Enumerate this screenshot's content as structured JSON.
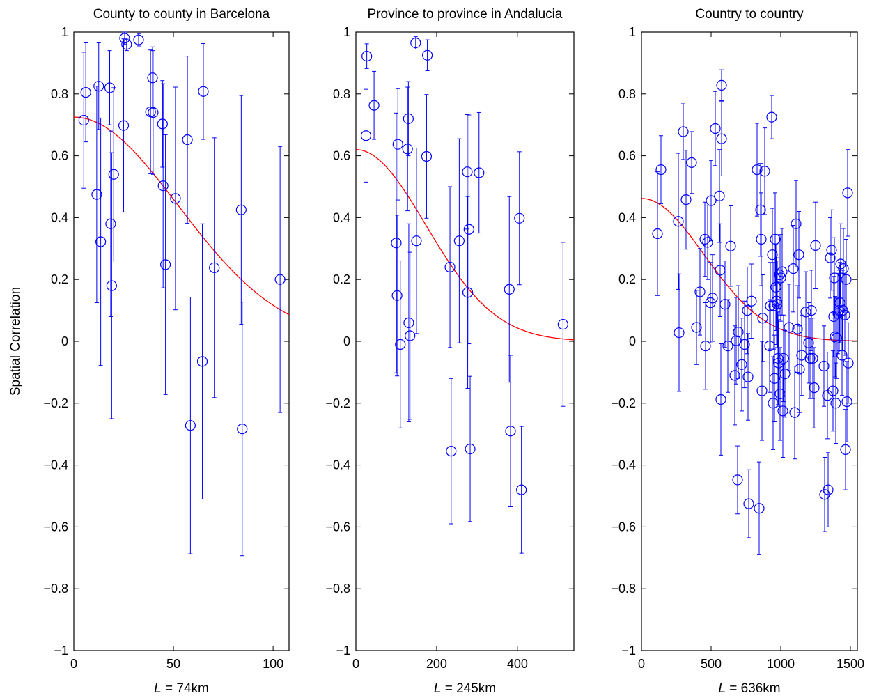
{
  "figure": {
    "ylabel": "Spatial Correlation",
    "marker_color": "#0000ff",
    "fit_color": "#ff0000"
  },
  "chart_data": [
    {
      "type": "scatter",
      "title": "County to county in Barcelona",
      "xlabel_italic": "L",
      "xlabel_rest": " = 74km",
      "xlim": [
        0,
        108
      ],
      "ylim": [
        -1,
        1
      ],
      "xticks": [
        0,
        50,
        100
      ],
      "yticks": [
        -1,
        -0.8,
        -0.6,
        -0.4,
        -0.2,
        0,
        0.2,
        0.4,
        0.6,
        0.8,
        1
      ],
      "fit": {
        "amplitude": 0.725,
        "length_scale": 74
      },
      "points": [
        {
          "x": 5,
          "y": 0.715,
          "err": 0.22
        },
        {
          "x": 6,
          "y": 0.805,
          "err": 0.16
        },
        {
          "x": 11.5,
          "y": 0.475,
          "err": 0.35
        },
        {
          "x": 12.5,
          "y": 0.825,
          "err": 0.14
        },
        {
          "x": 13.5,
          "y": 0.322,
          "err": 0.4
        },
        {
          "x": 18,
          "y": 0.82,
          "err": 0.12
        },
        {
          "x": 18.5,
          "y": 0.38,
          "err": 0.3
        },
        {
          "x": 19,
          "y": 0.18,
          "err": 0.43
        },
        {
          "x": 20,
          "y": 0.54,
          "err": 0.28
        },
        {
          "x": 25,
          "y": 0.698,
          "err": 0.28
        },
        {
          "x": 25.5,
          "y": 0.98,
          "err": 0.02
        },
        {
          "x": 26.5,
          "y": 0.96,
          "err": 0.02
        },
        {
          "x": 32.5,
          "y": 0.975,
          "err": 0.02
        },
        {
          "x": 38.5,
          "y": 0.742,
          "err": 0.2
        },
        {
          "x": 39.5,
          "y": 0.852,
          "err": 0.1
        },
        {
          "x": 39.8,
          "y": 0.74,
          "err": 0.2
        },
        {
          "x": 44.5,
          "y": 0.703,
          "err": 0.14
        },
        {
          "x": 44.8,
          "y": 0.503,
          "err": 0.33
        },
        {
          "x": 46,
          "y": 0.248,
          "err": 0.42
        },
        {
          "x": 51,
          "y": 0.462,
          "err": 0.36
        },
        {
          "x": 57,
          "y": 0.652,
          "err": 0.27
        },
        {
          "x": 58.5,
          "y": -0.272,
          "err": 0.415
        },
        {
          "x": 64.5,
          "y": -0.065,
          "err": 0.445
        },
        {
          "x": 65,
          "y": 0.808,
          "err": 0.155
        },
        {
          "x": 70.5,
          "y": 0.238,
          "err": 0.42
        },
        {
          "x": 84,
          "y": 0.425,
          "err": 0.37
        },
        {
          "x": 84.5,
          "y": -0.283,
          "err": 0.41
        },
        {
          "x": 103.5,
          "y": 0.2,
          "err": 0.43
        }
      ]
    },
    {
      "type": "scatter",
      "title": "Province to province in Andalucia",
      "xlabel_italic": "L",
      "xlabel_rest": " = 245km",
      "xlim": [
        0,
        540
      ],
      "ylim": [
        -1,
        1
      ],
      "xticks": [
        0,
        200,
        400
      ],
      "yticks": [
        -1,
        -0.8,
        -0.6,
        -0.4,
        -0.2,
        0,
        0.2,
        0.4,
        0.6,
        0.8,
        1
      ],
      "fit": {
        "amplitude": 0.62,
        "length_scale": 245
      },
      "points": [
        {
          "x": 25,
          "y": 0.665,
          "err": 0.15
        },
        {
          "x": 27,
          "y": 0.922,
          "err": 0.04
        },
        {
          "x": 45,
          "y": 0.763,
          "err": 0.11
        },
        {
          "x": 100,
          "y": 0.318,
          "err": 0.42
        },
        {
          "x": 102,
          "y": 0.148,
          "err": 0.26
        },
        {
          "x": 104,
          "y": 0.637,
          "err": 0.18
        },
        {
          "x": 110,
          "y": -0.01,
          "err": 0.27
        },
        {
          "x": 128,
          "y": 0.622,
          "err": 0.2
        },
        {
          "x": 130,
          "y": 0.72,
          "err": 0.12
        },
        {
          "x": 131,
          "y": 0.06,
          "err": 0.32
        },
        {
          "x": 134,
          "y": 0.018,
          "err": 0.27
        },
        {
          "x": 148,
          "y": 0.965,
          "err": 0.02
        },
        {
          "x": 150,
          "y": 0.325,
          "err": 0.3
        },
        {
          "x": 175,
          "y": 0.598,
          "err": 0.2
        },
        {
          "x": 177,
          "y": 0.925,
          "err": 0.05
        },
        {
          "x": 233,
          "y": 0.24,
          "err": 0.26
        },
        {
          "x": 236,
          "y": -0.355,
          "err": 0.235
        },
        {
          "x": 256,
          "y": 0.325,
          "err": 0.33
        },
        {
          "x": 276,
          "y": 0.548,
          "err": 0.185
        },
        {
          "x": 277,
          "y": 0.158,
          "err": 0.31
        },
        {
          "x": 280,
          "y": 0.362,
          "err": 0.37
        },
        {
          "x": 283,
          "y": -0.348,
          "err": 0.235
        },
        {
          "x": 305,
          "y": 0.545,
          "err": 0.195
        },
        {
          "x": 380,
          "y": 0.168,
          "err": 0.3
        },
        {
          "x": 383,
          "y": -0.29,
          "err": 0.245
        },
        {
          "x": 405,
          "y": 0.398,
          "err": 0.215
        },
        {
          "x": 410,
          "y": -0.48,
          "err": 0.205
        },
        {
          "x": 513,
          "y": 0.055,
          "err": 0.265
        }
      ]
    },
    {
      "type": "scatter",
      "title": "Country to country",
      "xlabel_italic": "L",
      "xlabel_rest": " = 636km",
      "xlim": [
        0,
        1550
      ],
      "ylim": [
        -1,
        1
      ],
      "xticks": [
        0,
        500,
        1000,
        1500
      ],
      "yticks": [
        -1,
        -0.8,
        -0.6,
        -0.4,
        -0.2,
        0,
        0.2,
        0.4,
        0.6,
        0.8,
        1
      ],
      "fit": {
        "amplitude": 0.462,
        "length_scale": 636
      },
      "points": [
        {
          "x": 115,
          "y": 0.348,
          "err": 0.2
        },
        {
          "x": 140,
          "y": 0.555,
          "err": 0.11
        },
        {
          "x": 265,
          "y": 0.388,
          "err": 0.22
        },
        {
          "x": 270,
          "y": 0.028,
          "err": 0.19
        },
        {
          "x": 300,
          "y": 0.678,
          "err": 0.09
        },
        {
          "x": 320,
          "y": 0.458,
          "err": 0.16
        },
        {
          "x": 360,
          "y": 0.578,
          "err": 0.1
        },
        {
          "x": 395,
          "y": 0.045,
          "err": 0.12
        },
        {
          "x": 420,
          "y": 0.16,
          "err": 0.14
        },
        {
          "x": 455,
          "y": 0.33,
          "err": 0.12
        },
        {
          "x": 460,
          "y": -0.015,
          "err": 0.14
        },
        {
          "x": 475,
          "y": 0.32,
          "err": 0.12
        },
        {
          "x": 495,
          "y": 0.125,
          "err": 0.13
        },
        {
          "x": 500,
          "y": 0.455,
          "err": 0.13
        },
        {
          "x": 510,
          "y": 0.14,
          "err": 0.14
        },
        {
          "x": 530,
          "y": 0.688,
          "err": 0.12
        },
        {
          "x": 560,
          "y": 0.47,
          "err": 0.15
        },
        {
          "x": 565,
          "y": 0.23,
          "err": 0.15
        },
        {
          "x": 570,
          "y": -0.188,
          "err": 0.18
        },
        {
          "x": 575,
          "y": 0.828,
          "err": 0.05
        },
        {
          "x": 575,
          "y": 0.655,
          "err": 0.12
        },
        {
          "x": 600,
          "y": 0.12,
          "err": 0.14
        },
        {
          "x": 620,
          "y": -0.015,
          "err": 0.15
        },
        {
          "x": 640,
          "y": 0.308,
          "err": 0.13
        },
        {
          "x": 670,
          "y": -0.11,
          "err": 0.16
        },
        {
          "x": 680,
          "y": 0.002,
          "err": 0.14
        },
        {
          "x": 690,
          "y": -0.448,
          "err": 0.11
        },
        {
          "x": 695,
          "y": 0.03,
          "err": 0.15
        },
        {
          "x": 720,
          "y": -0.075,
          "err": 0.15
        },
        {
          "x": 740,
          "y": -0.01,
          "err": 0.14
        },
        {
          "x": 760,
          "y": 0.1,
          "err": 0.14
        },
        {
          "x": 765,
          "y": -0.115,
          "err": 0.14
        },
        {
          "x": 770,
          "y": -0.525,
          "err": 0.11
        },
        {
          "x": 790,
          "y": 0.13,
          "err": 0.12
        },
        {
          "x": 830,
          "y": 0.555,
          "err": 0.15
        },
        {
          "x": 845,
          "y": -0.54,
          "err": 0.15
        },
        {
          "x": 855,
          "y": 0.425,
          "err": 0.15
        },
        {
          "x": 860,
          "y": 0.33,
          "err": 0.15
        },
        {
          "x": 865,
          "y": -0.16,
          "err": 0.16
        },
        {
          "x": 870,
          "y": 0.075,
          "err": 0.14
        },
        {
          "x": 885,
          "y": 0.55,
          "err": 0.14
        },
        {
          "x": 920,
          "y": -0.015,
          "err": 0.15
        },
        {
          "x": 925,
          "y": 0.115,
          "err": 0.14
        },
        {
          "x": 935,
          "y": 0.725,
          "err": 0.07
        },
        {
          "x": 940,
          "y": 0.28,
          "err": 0.15
        },
        {
          "x": 945,
          "y": -0.2,
          "err": 0.15
        },
        {
          "x": 950,
          "y": 0.115,
          "err": 0.14
        },
        {
          "x": 955,
          "y": -0.12,
          "err": 0.14
        },
        {
          "x": 960,
          "y": 0.33,
          "err": 0.15
        },
        {
          "x": 965,
          "y": 0.175,
          "err": 0.14
        },
        {
          "x": 970,
          "y": 0.13,
          "err": 0.14
        },
        {
          "x": 975,
          "y": 0.12,
          "err": 0.14
        },
        {
          "x": 980,
          "y": -0.055,
          "err": 0.15
        },
        {
          "x": 985,
          "y": -0.07,
          "err": 0.14
        },
        {
          "x": 990,
          "y": 0.215,
          "err": 0.13
        },
        {
          "x": 995,
          "y": -0.17,
          "err": 0.15
        },
        {
          "x": 1000,
          "y": 0.205,
          "err": 0.14
        },
        {
          "x": 1010,
          "y": 0.225,
          "err": 0.14
        },
        {
          "x": 1015,
          "y": -0.225,
          "err": 0.15
        },
        {
          "x": 1020,
          "y": -0.055,
          "err": 0.14
        },
        {
          "x": 1030,
          "y": -0.105,
          "err": 0.14
        },
        {
          "x": 1060,
          "y": 0.045,
          "err": 0.14
        },
        {
          "x": 1090,
          "y": 0.235,
          "err": 0.14
        },
        {
          "x": 1100,
          "y": -0.23,
          "err": 0.15
        },
        {
          "x": 1110,
          "y": 0.38,
          "err": 0.14
        },
        {
          "x": 1120,
          "y": 0.04,
          "err": 0.14
        },
        {
          "x": 1130,
          "y": 0.28,
          "err": 0.14
        },
        {
          "x": 1135,
          "y": -0.09,
          "err": 0.14
        },
        {
          "x": 1150,
          "y": -0.045,
          "err": 0.13
        },
        {
          "x": 1180,
          "y": 0.095,
          "err": 0.13
        },
        {
          "x": 1200,
          "y": -0.005,
          "err": 0.13
        },
        {
          "x": 1210,
          "y": -0.055,
          "err": 0.13
        },
        {
          "x": 1220,
          "y": 0.1,
          "err": 0.13
        },
        {
          "x": 1230,
          "y": -0.055,
          "err": 0.13
        },
        {
          "x": 1240,
          "y": -0.15,
          "err": 0.13
        },
        {
          "x": 1250,
          "y": 0.31,
          "err": 0.14
        },
        {
          "x": 1310,
          "y": -0.08,
          "err": 0.13
        },
        {
          "x": 1315,
          "y": -0.495,
          "err": 0.12
        },
        {
          "x": 1335,
          "y": -0.175,
          "err": 0.14
        },
        {
          "x": 1340,
          "y": -0.48,
          "err": 0.12
        },
        {
          "x": 1355,
          "y": 0.27,
          "err": 0.13
        },
        {
          "x": 1365,
          "y": 0.295,
          "err": 0.13
        },
        {
          "x": 1375,
          "y": -0.16,
          "err": 0.13
        },
        {
          "x": 1380,
          "y": 0.08,
          "err": 0.13
        },
        {
          "x": 1385,
          "y": 0.205,
          "err": 0.13
        },
        {
          "x": 1390,
          "y": 0.015,
          "err": 0.13
        },
        {
          "x": 1395,
          "y": -0.2,
          "err": 0.13
        },
        {
          "x": 1400,
          "y": 0.01,
          "err": 0.13
        },
        {
          "x": 1410,
          "y": 0.09,
          "err": 0.13
        },
        {
          "x": 1420,
          "y": 0.1,
          "err": 0.13
        },
        {
          "x": 1425,
          "y": 0.125,
          "err": 0.13
        },
        {
          "x": 1430,
          "y": 0.25,
          "err": 0.13
        },
        {
          "x": 1440,
          "y": -0.045,
          "err": 0.13
        },
        {
          "x": 1445,
          "y": 0.1,
          "err": 0.13
        },
        {
          "x": 1450,
          "y": 0.235,
          "err": 0.13
        },
        {
          "x": 1460,
          "y": 0.085,
          "err": 0.13
        },
        {
          "x": 1465,
          "y": -0.35,
          "err": 0.13
        },
        {
          "x": 1470,
          "y": 0.2,
          "err": 0.13
        },
        {
          "x": 1475,
          "y": -0.195,
          "err": 0.13
        },
        {
          "x": 1480,
          "y": 0.48,
          "err": 0.14
        },
        {
          "x": 1485,
          "y": -0.07,
          "err": 0.13
        }
      ]
    }
  ]
}
